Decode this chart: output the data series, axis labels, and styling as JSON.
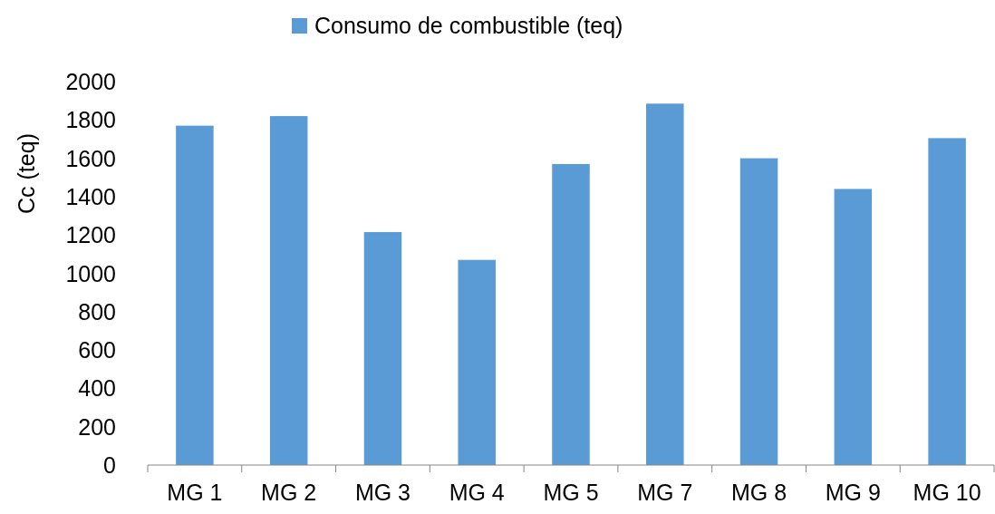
{
  "chart_data": {
    "type": "bar",
    "ylabel": "Cc (teq)",
    "categories": [
      "MG 1",
      "MG 2",
      "MG 3",
      "MG 4",
      "MG 5",
      "MG 7",
      "MG 8",
      "MG 9",
      "MG 10"
    ],
    "series": [
      {
        "name": "Consumo de combustible (teq)",
        "color": "#5b9bd5",
        "values": [
          1770,
          1820,
          1215,
          1070,
          1570,
          1885,
          1600,
          1440,
          1705
        ]
      }
    ],
    "ylim": [
      0,
      2000
    ],
    "yticks": [
      0,
      200,
      400,
      600,
      800,
      1000,
      1200,
      1400,
      1600,
      1800,
      2000
    ],
    "grid": false,
    "legend": "top"
  }
}
